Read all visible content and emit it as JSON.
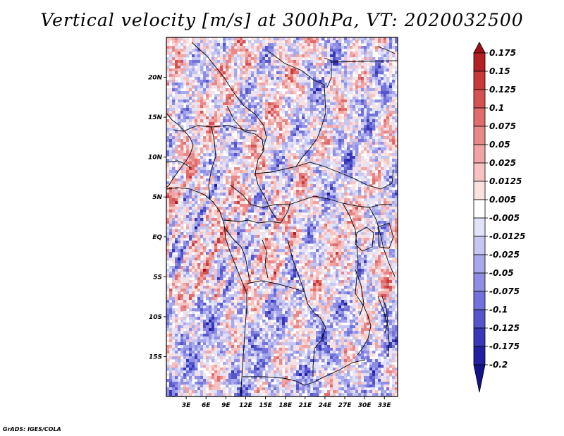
{
  "title": "Vertical velocity [m/s] at 300hPa, VT: 2020032500",
  "credit": "GrADS: IGES/COLA",
  "chart_data": {
    "type": "heatmap",
    "variable": "Vertical velocity",
    "units": "m/s",
    "level": "300hPa",
    "valid_time": "2020032500",
    "x_range": [
      0,
      35
    ],
    "y_range": [
      -20,
      25
    ],
    "x_ticks": [
      {
        "value": 3,
        "label": "3E"
      },
      {
        "value": 6,
        "label": "6E"
      },
      {
        "value": 9,
        "label": "9E"
      },
      {
        "value": 12,
        "label": "12E"
      },
      {
        "value": 15,
        "label": "15E"
      },
      {
        "value": 18,
        "label": "18E"
      },
      {
        "value": 21,
        "label": "21E"
      },
      {
        "value": 24,
        "label": "24E"
      },
      {
        "value": 27,
        "label": "27E"
      },
      {
        "value": 30,
        "label": "30E"
      },
      {
        "value": 33,
        "label": "33E"
      }
    ],
    "y_ticks": [
      {
        "value": 20,
        "label": "20N"
      },
      {
        "value": 15,
        "label": "15N"
      },
      {
        "value": 10,
        "label": "10N"
      },
      {
        "value": 5,
        "label": "5N"
      },
      {
        "value": 0,
        "label": "EQ"
      },
      {
        "value": -5,
        "label": "5S"
      },
      {
        "value": -10,
        "label": "10S"
      },
      {
        "value": -15,
        "label": "15S"
      }
    ],
    "colorbar": {
      "labels": [
        "0.175",
        "0.15",
        "0.125",
        "0.1",
        "0.075",
        "0.05",
        "0.025",
        "0.0125",
        "0.005",
        "-0.005",
        "-0.0125",
        "-0.025",
        "-0.05",
        "-0.075",
        "-0.1",
        "-0.125",
        "-0.175",
        "-0.2"
      ],
      "colors": [
        "#a0101a",
        "#b42026",
        "#c83a3a",
        "#d65252",
        "#e06c6c",
        "#e88888",
        "#f0a4a4",
        "#f6c2c2",
        "#fbe0e0",
        "#ffffff",
        "#e2e2fa",
        "#c6c6f2",
        "#a8a8ec",
        "#8e8ee4",
        "#7272dc",
        "#5656cc",
        "#3838b8",
        "#2020a0",
        "#12128a"
      ]
    }
  }
}
